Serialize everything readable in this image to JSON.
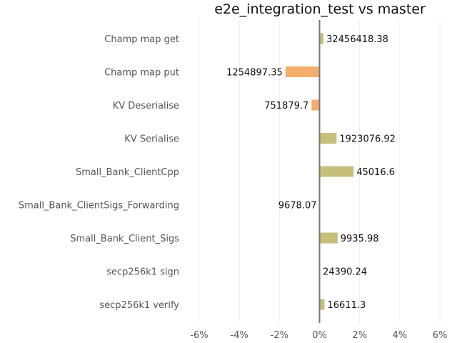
{
  "chart_data": {
    "type": "bar",
    "orientation": "horizontal",
    "title": "e2e_integration_test vs master",
    "xlabel": "",
    "ylabel": "",
    "categories": [
      "Champ map get",
      "Champ map put",
      "KV Deserialise",
      "KV Serialise",
      "Small_Bank_ClientCpp",
      "Small_Bank_ClientSigs_Forwarding",
      "Small_Bank_Client_Sigs",
      "secp256k1 sign",
      "secp256k1 verify"
    ],
    "values": [
      0.2,
      -1.7,
      -0.4,
      0.85,
      1.7,
      0.0,
      0.9,
      0.02,
      0.25
    ],
    "data_labels": [
      "32456418.38",
      "1254897.35",
      "751879.7",
      "1923076.92",
      "45016.6",
      "9678.07",
      "9935.98",
      "24390.24",
      "16611.3"
    ],
    "xlim": [
      -6,
      6
    ],
    "xticks": [
      -6,
      -4,
      -2,
      0,
      2,
      4,
      6
    ],
    "xtick_labels": [
      "-6%",
      "-4%",
      "-2%",
      "0%",
      "2%",
      "4%",
      "6%"
    ],
    "grid": true,
    "colors": {
      "positive": "#c5bf7a",
      "negative": "#f5ad6c",
      "zero_line": "#777777",
      "grid": "#eeeeee"
    }
  }
}
